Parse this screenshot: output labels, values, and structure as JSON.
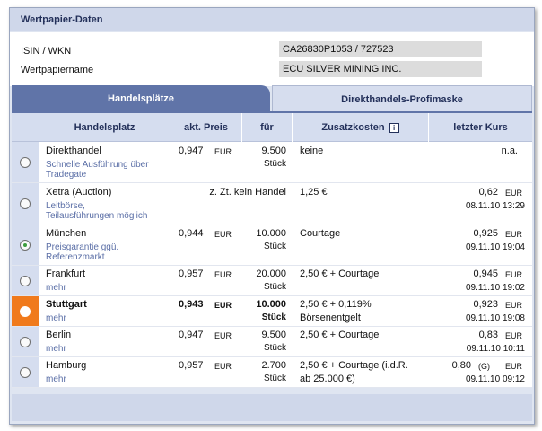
{
  "title": "Wertpapier-Daten",
  "info": {
    "isin_label": "ISIN / WKN",
    "isin_value": "CA26830P1053 / 727523",
    "name_label": "Wertpapiername",
    "name_value": "ECU SILVER MINING INC."
  },
  "tabs": [
    {
      "label": "Handelsplätze",
      "active": true
    },
    {
      "label": "Direkthandels-Profimaske",
      "active": false
    }
  ],
  "columns": {
    "handelsplatz": "Handelsplatz",
    "akt_preis": "akt. Preis",
    "fuer": "für",
    "zusatzkosten": "Zusatzkosten",
    "letzter_kurs": "letzter Kurs",
    "info_icon": "i"
  },
  "rows": [
    {
      "name": "Direkthandel",
      "sub1": "Schnelle Ausführung über",
      "sub2": "Tradegate",
      "price": "0,947",
      "price_cur": "EUR",
      "qty": "9.500",
      "qty_unit": "Stück",
      "cost1": "keine",
      "cost2": "",
      "last": "n.a.",
      "last_cur": "",
      "last_flag": "",
      "last_date": "",
      "radio": "unchecked"
    },
    {
      "name": "Xetra (Auction)",
      "sub1": "Leitbörse,",
      "sub2": "Teilausführungen möglich",
      "price_note": "z. Zt. kein Handel",
      "cost1": "1,25 €",
      "cost2": "",
      "last": "0,62",
      "last_cur": "EUR",
      "last_flag": "",
      "last_date": "08.11.10  13:29",
      "radio": "unchecked"
    },
    {
      "name": "München",
      "sub1": "Preisgarantie ggü.",
      "sub2": "Referenzmarkt",
      "price": "0,944",
      "price_cur": "EUR",
      "qty": "10.000",
      "qty_unit": "Stück",
      "cost1": "Courtage",
      "cost2": "",
      "last": "0,925",
      "last_cur": "EUR",
      "last_flag": "",
      "last_date": "09.11.10  19:04",
      "radio": "checked"
    },
    {
      "name": "Frankfurt",
      "sub1": "mehr",
      "sub2": "",
      "price": "0,957",
      "price_cur": "EUR",
      "qty": "20.000",
      "qty_unit": "Stück",
      "cost1": "2,50 € + Courtage",
      "cost2": "",
      "last": "0,945",
      "last_cur": "EUR",
      "last_flag": "",
      "last_date": "09.11.10  19:02",
      "radio": "unchecked"
    },
    {
      "name": "Stuttgart",
      "sub1": "mehr",
      "sub2": "",
      "price": "0,943",
      "price_cur": "EUR",
      "qty": "10.000",
      "qty_unit": "Stück",
      "cost1": "2,50 € + 0,119%",
      "cost2": "Börsenentgelt",
      "last": "0,923",
      "last_cur": "EUR",
      "last_flag": "",
      "last_date": "09.11.10  19:08",
      "radio": "selected"
    },
    {
      "name": "Berlin",
      "sub1": "mehr",
      "sub2": "",
      "price": "0,947",
      "price_cur": "EUR",
      "qty": "9.500",
      "qty_unit": "Stück",
      "cost1": "2,50 € + Courtage",
      "cost2": "",
      "last": "0,83",
      "last_cur": "EUR",
      "last_flag": "",
      "last_date": "09.11.10  10:11",
      "radio": "unchecked"
    },
    {
      "name": "Hamburg",
      "sub1": "mehr",
      "sub2": "",
      "price": "0,957",
      "price_cur": "EUR",
      "qty": "2.700",
      "qty_unit": "Stück",
      "cost1": "2,50 € + Courtage (i.d.R.",
      "cost2": "ab 25.000 €)",
      "last": "0,80",
      "last_cur": "EUR",
      "last_flag": "(G)",
      "last_date": "09.11.10  09:12",
      "radio": "unchecked"
    }
  ],
  "colors": {
    "accent": "#6074a8",
    "selected_row": "#f07a1c",
    "header_bg": "#d5ddef",
    "link": "#5a6ea6"
  }
}
